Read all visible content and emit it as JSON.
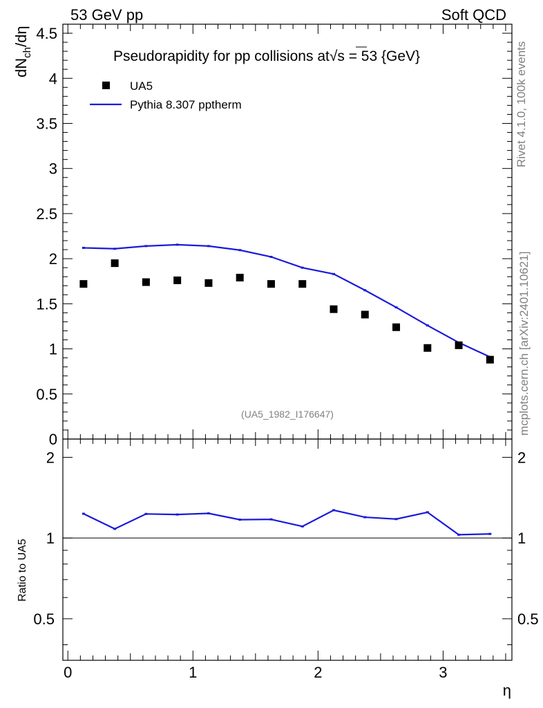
{
  "header": {
    "left": "53 GeV pp",
    "right": "Soft QCD"
  },
  "side_labels": {
    "rivet": "Rivet 4.1.0,  100k events",
    "mcplots": "mcplots.cern.ch [arXiv:2401.10621]"
  },
  "colors": {
    "data": "#000000",
    "mc": "#1a1adb",
    "watermark": "#808080"
  },
  "chart_data": [
    {
      "type": "scatter",
      "panel": "main",
      "title_prefix": "Pseudorapidity for pp collisions at",
      "title_sqrt": "√s",
      "title_suffix": " = 53 {GeV}",
      "ylabel_main": "dN",
      "ylabel_sub": "ch",
      "ylabel_tail": "/dη",
      "watermark": "(UA5_1982_I176647)",
      "xlim": [
        -0.04,
        3.55
      ],
      "ylim": [
        0,
        4.6
      ],
      "yticks": [
        0,
        0.5,
        1,
        1.5,
        2,
        2.5,
        3,
        3.5,
        4,
        4.5
      ],
      "ytick_labels": [
        "0",
        "0.5",
        "1",
        "1.5",
        "2",
        "2.5",
        "3",
        "3.5",
        "4",
        "4.5"
      ],
      "legend": [
        {
          "label": "UA5",
          "kind": "marker"
        },
        {
          "label": "Pythia 8.307 pptherm",
          "kind": "line"
        }
      ],
      "series": [
        {
          "name": "UA5",
          "x": [
            0.125,
            0.375,
            0.625,
            0.875,
            1.125,
            1.375,
            1.625,
            1.875,
            2.125,
            2.375,
            2.625,
            2.875,
            3.125,
            3.375
          ],
          "values": [
            1.72,
            1.95,
            1.74,
            1.76,
            1.73,
            1.79,
            1.72,
            1.72,
            1.44,
            1.38,
            1.24,
            1.01,
            1.04,
            0.88
          ]
        },
        {
          "name": "Pythia 8.307 pptherm",
          "x": [
            0.125,
            0.375,
            0.625,
            0.875,
            1.125,
            1.375,
            1.625,
            1.875,
            2.125,
            2.375,
            2.625,
            2.875,
            3.125,
            3.375
          ],
          "values": [
            2.12,
            2.11,
            2.14,
            2.155,
            2.14,
            2.095,
            2.02,
            1.9,
            1.83,
            1.65,
            1.46,
            1.26,
            1.07,
            0.91
          ]
        }
      ]
    },
    {
      "type": "line",
      "panel": "ratio",
      "ylabel": "Ratio to UA5",
      "xlabel": "η",
      "xlim": [
        -0.04,
        3.55
      ],
      "ylim": [
        0.35,
        2.34
      ],
      "yticks": [
        0.5,
        1,
        2
      ],
      "ytick_labels": [
        "0.5",
        "1",
        "2"
      ],
      "xticks": [
        0,
        1,
        2,
        3
      ],
      "xtick_labels": [
        "0",
        "1",
        "2",
        "3"
      ],
      "reference": 1,
      "series": [
        {
          "name": "Pythia 8.307 pptherm / UA5",
          "x": [
            0.125,
            0.375,
            0.625,
            0.875,
            1.125,
            1.375,
            1.625,
            1.875,
            2.125,
            2.375,
            2.625,
            2.875,
            3.125,
            3.375
          ],
          "values": [
            1.232,
            1.082,
            1.23,
            1.224,
            1.236,
            1.171,
            1.174,
            1.105,
            1.27,
            1.196,
            1.177,
            1.248,
            1.029,
            1.036
          ]
        }
      ]
    }
  ]
}
